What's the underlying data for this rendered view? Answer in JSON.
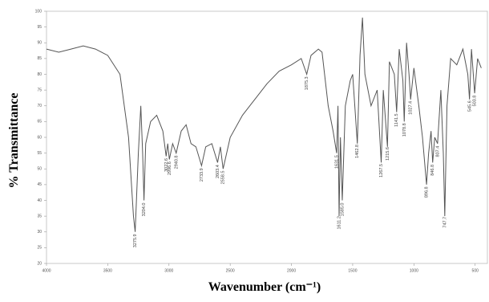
{
  "chart_data": {
    "type": "line",
    "xlabel": "Wavenumber (cm⁻¹)",
    "ylabel": "% Transmittance",
    "xlim": [
      4000,
      400
    ],
    "ylim": [
      20,
      100
    ],
    "xticks": [
      4000,
      3500,
      3000,
      2500,
      2000,
      1500,
      1000,
      500
    ],
    "yticks": [
      20,
      25,
      30,
      35,
      40,
      45,
      50,
      55,
      60,
      65,
      70,
      75,
      80,
      85,
      90,
      95,
      100
    ],
    "color": "#555555",
    "x": [
      4000,
      3900,
      3800,
      3700,
      3600,
      3500,
      3400,
      3330,
      3290,
      3276,
      3250,
      3230,
      3215,
      3204,
      3190,
      3150,
      3100,
      3050,
      3023,
      3010,
      2997,
      2970,
      2941,
      2900,
      2860,
      2820,
      2780,
      2734,
      2700,
      2650,
      2603,
      2580,
      2558,
      2500,
      2400,
      2300,
      2200,
      2100,
      2000,
      1920,
      1875,
      1840,
      1780,
      1750,
      1700,
      1660,
      1631,
      1620,
      1611,
      1600,
      1585,
      1560,
      1520,
      1500,
      1462,
      1440,
      1420,
      1400,
      1350,
      1300,
      1267,
      1250,
      1216,
      1200,
      1160,
      1141,
      1120,
      1090,
      1079,
      1060,
      1040,
      1027,
      1000,
      960,
      930,
      897,
      880,
      860,
      847,
      830,
      807,
      780,
      760,
      748,
      730,
      700,
      650,
      600,
      560,
      546,
      530,
      504,
      480,
      450
    ],
    "values": [
      88,
      87,
      88,
      89,
      88,
      86,
      80,
      60,
      35,
      30,
      55,
      70,
      55,
      40,
      58,
      65,
      67,
      62,
      54,
      58,
      53,
      58,
      55,
      62,
      64,
      58,
      57,
      51,
      57,
      58,
      52,
      57,
      50,
      60,
      67,
      72,
      77,
      81,
      83,
      85,
      80,
      86,
      88,
      87,
      70,
      62,
      55,
      70,
      35,
      60,
      40,
      70,
      78,
      80,
      58,
      86,
      98,
      80,
      70,
      75,
      52,
      75,
      57,
      84,
      80,
      68,
      88,
      78,
      65,
      90,
      80,
      72,
      82,
      70,
      60,
      45,
      55,
      62,
      52,
      60,
      58,
      75,
      55,
      35,
      70,
      85,
      83,
      88,
      80,
      72,
      88,
      74,
      85,
      82
    ],
    "annotations": [
      "3275.9",
      "3204.0",
      "3022.6",
      "2996.6",
      "2940.8",
      "2733.9",
      "2603.4",
      "2558.5",
      "1875.3",
      "1631.5",
      "1611.2",
      "1585.0",
      "1462.8",
      "1267.5",
      "1215.6",
      "1141.5",
      "1078.8",
      "1027.4",
      "896.8",
      "846.8",
      "807.4",
      "747.7",
      "545.6",
      "503.8"
    ]
  }
}
